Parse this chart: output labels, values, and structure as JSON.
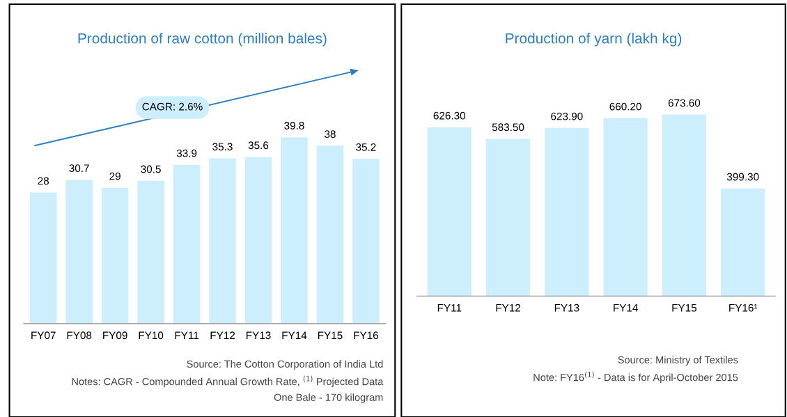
{
  "chart_data": [
    {
      "type": "bar",
      "title": "Production of raw cotton (million bales)",
      "categories": [
        "FY07",
        "FY08",
        "FY09",
        "FY10",
        "FY11",
        "FY12",
        "FY13",
        "FY14",
        "FY15",
        "FY16"
      ],
      "values": [
        28,
        30.7,
        29,
        30.5,
        33.9,
        35.3,
        35.6,
        39.8,
        38,
        35.2
      ],
      "color": "#cdeefd",
      "data_labels": true,
      "tick_labels": "x",
      "annotations": [
        "CAGR: 2.6%",
        "Source: The Cotton Corporation of India Ltd",
        "Notes: CAGR - Compounded Annual Growth Rate, $^{(1)}$ Projected Data",
        "One Bale - 170 kilogram"
      ]
    },
    {
      "type": "bar",
      "title": "Production of yarn (lakh kg)",
      "categories": [
        "FY11",
        "FY12",
        "FY13",
        "FY14",
        "FY15",
        "FY16¹"
      ],
      "values": [
        626.3,
        583.5,
        623.9,
        660.2,
        673.6,
        399.3
      ],
      "value_labels": [
        "626.30",
        "583.50",
        "623.90",
        "660.20",
        "673.60",
        "399.30"
      ],
      "color": "#cdeefd",
      "tick_labels": "x",
      "annotations": [
        "Source: Ministry of Textiles",
        "Note: FY16$^{(1)}$ - Data is for April-October 2015"
      ]
    }
  ]
}
